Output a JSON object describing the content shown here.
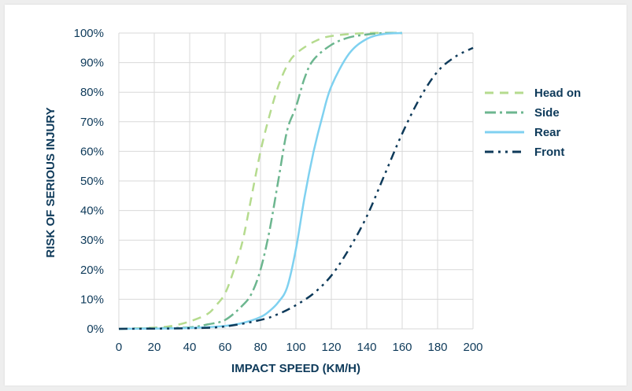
{
  "chart_data": {
    "type": "line",
    "title": "",
    "xlabel": "IMPACT SPEED (KM/H)",
    "ylabel": "RISK OF SERIOUS INJURY",
    "xlim": [
      0,
      200
    ],
    "ylim": [
      0,
      100
    ],
    "x_ticks": [
      "0",
      "20",
      "40",
      "60",
      "80",
      "100",
      "120",
      "140",
      "160",
      "180",
      "200"
    ],
    "y_ticks": [
      "0%",
      "10%",
      "20%",
      "30%",
      "40%",
      "50%",
      "60%",
      "70%",
      "80%",
      "90%",
      "100%"
    ],
    "grid": true,
    "legend_position": "right",
    "series": [
      {
        "name": "Head on",
        "color": "#b5db8e",
        "dash": "dashed",
        "points": [
          [
            0,
            0
          ],
          [
            20,
            0.4
          ],
          [
            30,
            1
          ],
          [
            40,
            2.5
          ],
          [
            50,
            5
          ],
          [
            55,
            8
          ],
          [
            60,
            12
          ],
          [
            65,
            20
          ],
          [
            70,
            30
          ],
          [
            75,
            45
          ],
          [
            80,
            60
          ],
          [
            85,
            72
          ],
          [
            90,
            82
          ],
          [
            95,
            89
          ],
          [
            100,
            93
          ],
          [
            110,
            97
          ],
          [
            120,
            99
          ],
          [
            140,
            100
          ],
          [
            160,
            100
          ]
        ]
      },
      {
        "name": "Side",
        "color": "#6cb68f",
        "dash": "dash-dot",
        "points": [
          [
            0,
            0
          ],
          [
            20,
            0.2
          ],
          [
            40,
            0.5
          ],
          [
            50,
            1.5
          ],
          [
            60,
            3
          ],
          [
            70,
            8
          ],
          [
            75,
            12
          ],
          [
            80,
            20
          ],
          [
            85,
            33
          ],
          [
            90,
            50
          ],
          [
            95,
            67
          ],
          [
            100,
            75
          ],
          [
            105,
            85
          ],
          [
            110,
            91
          ],
          [
            120,
            96
          ],
          [
            130,
            98.5
          ],
          [
            140,
            99.5
          ],
          [
            150,
            100
          ],
          [
            160,
            100
          ]
        ]
      },
      {
        "name": "Rear",
        "color": "#7fd1f0",
        "dash": "solid",
        "points": [
          [
            0,
            0
          ],
          [
            20,
            0.1
          ],
          [
            40,
            0.3
          ],
          [
            60,
            1
          ],
          [
            70,
            2
          ],
          [
            80,
            4
          ],
          [
            85,
            6
          ],
          [
            90,
            9
          ],
          [
            95,
            14
          ],
          [
            100,
            27
          ],
          [
            105,
            45
          ],
          [
            110,
            60
          ],
          [
            115,
            72
          ],
          [
            120,
            82
          ],
          [
            130,
            93
          ],
          [
            140,
            98
          ],
          [
            150,
            99.7
          ],
          [
            160,
            100
          ]
        ]
      },
      {
        "name": "Front",
        "color": "#0e3a5a",
        "dash": "dash-dot-dot",
        "points": [
          [
            0,
            0
          ],
          [
            40,
            0.2
          ],
          [
            60,
            0.8
          ],
          [
            80,
            3
          ],
          [
            90,
            5
          ],
          [
            100,
            8
          ],
          [
            110,
            12
          ],
          [
            120,
            18
          ],
          [
            130,
            27
          ],
          [
            140,
            38
          ],
          [
            150,
            52
          ],
          [
            160,
            66
          ],
          [
            170,
            78
          ],
          [
            180,
            87
          ],
          [
            190,
            92
          ],
          [
            200,
            95
          ]
        ]
      }
    ]
  }
}
